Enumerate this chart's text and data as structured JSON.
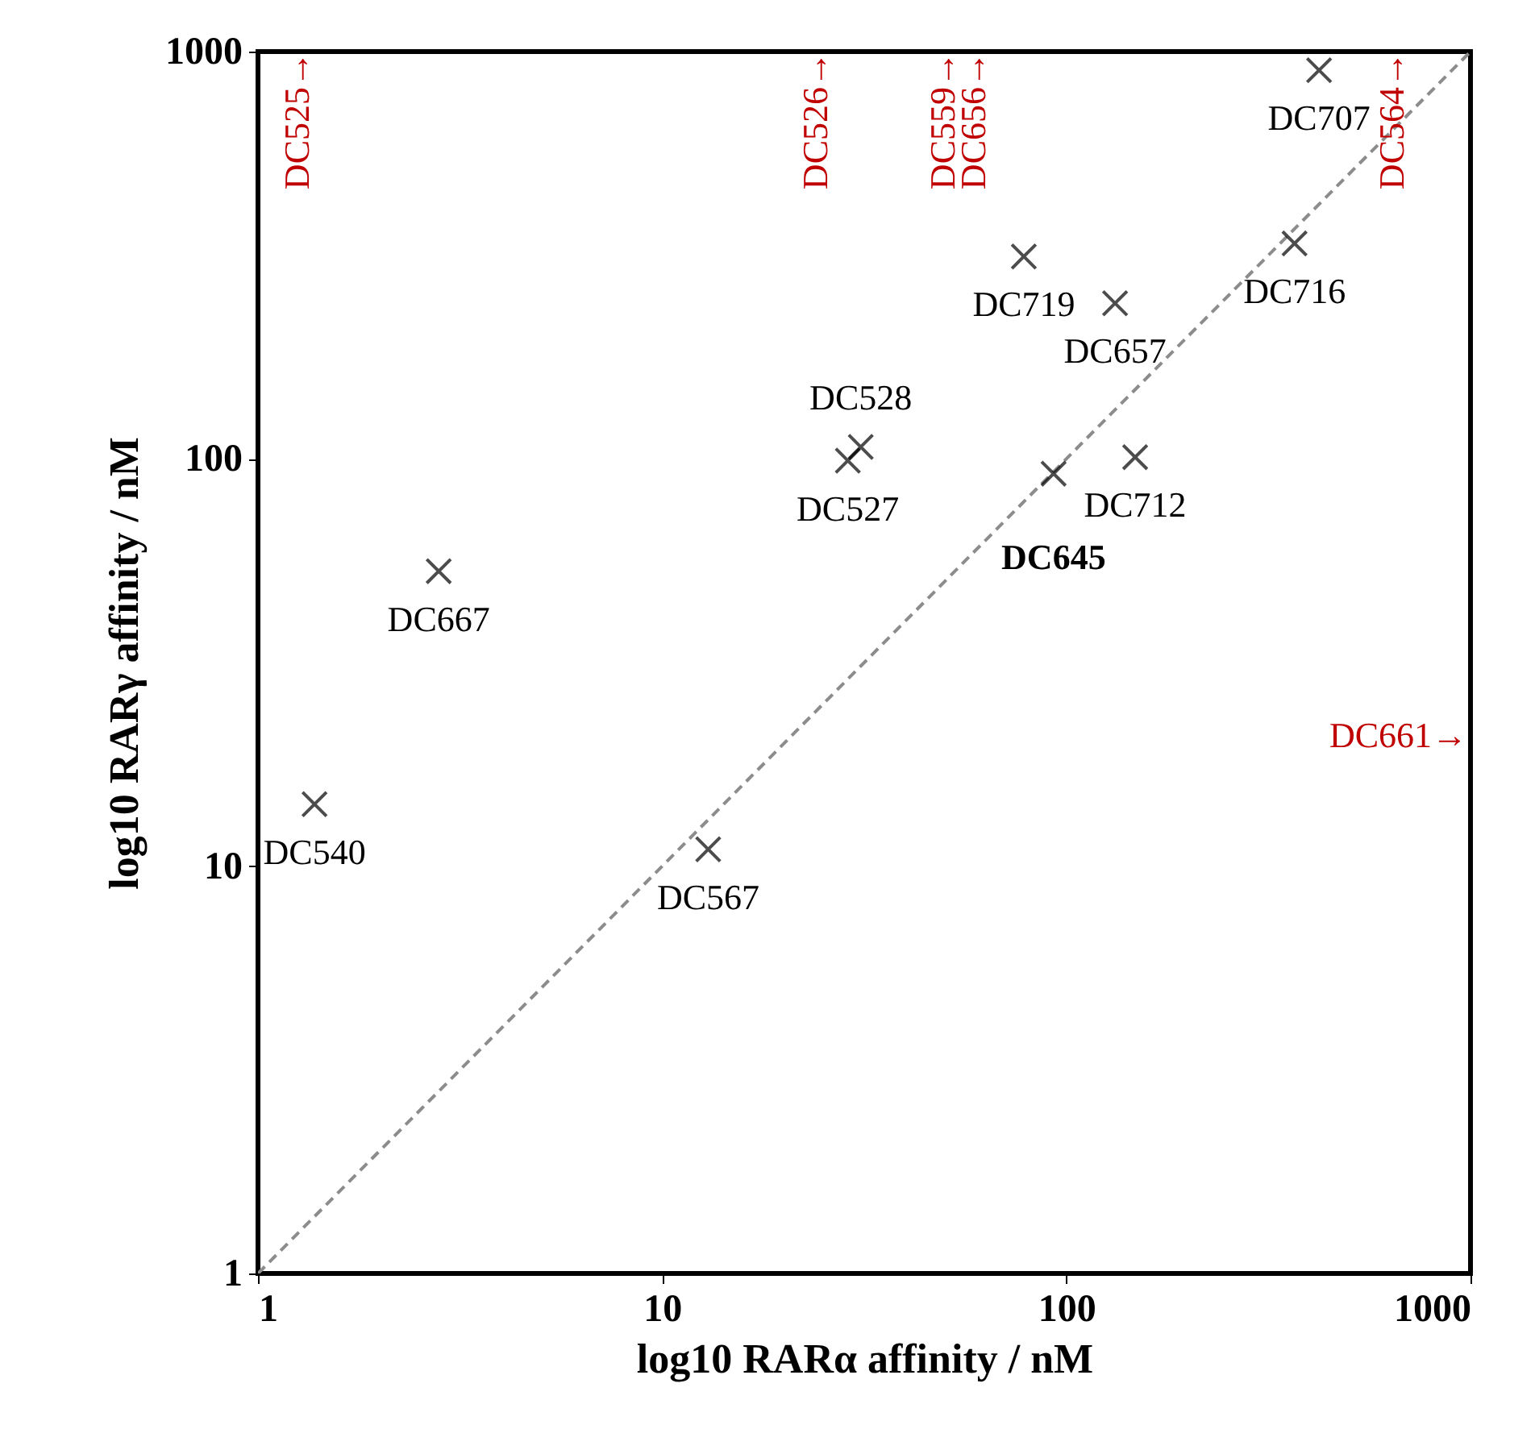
{
  "chart_data": {
    "type": "scatter",
    "xlabel": "log10 RARα affinity / nM",
    "ylabel": "log10 RARγ affinity / nM",
    "log": "xy",
    "xlim": [
      1,
      1000
    ],
    "ylim": [
      1,
      1000
    ],
    "xticks": [
      1,
      10,
      100,
      1000
    ],
    "yticks": [
      1,
      10,
      100,
      1000
    ],
    "grid": false,
    "marker": "cross",
    "series": [
      {
        "color": "#000000",
        "x": [
          422,
          367,
          78.5,
          132,
          31,
          28.8,
          148,
          93,
          2.8,
          1.38,
          13
        ],
        "values": [
          900,
          338,
          314,
          241,
          107,
          99,
          101,
          92,
          53,
          14.2,
          11
        ]
      },
      {
        "type": "line",
        "color": "#8c8c8c",
        "line_style": "dashed",
        "marker": "none",
        "x": [
          1,
          1000
        ],
        "values": [
          1,
          1000
        ]
      }
    ],
    "annotations": [
      {
        "text": "DC707",
        "x": 422,
        "y": 900
      },
      {
        "text": "DC716",
        "x": 367,
        "y": 338
      },
      {
        "text": "DC719",
        "x": 78.5,
        "y": 314
      },
      {
        "text": "DC657",
        "x": 132,
        "y": 241
      },
      {
        "text": "DC528",
        "x": 31,
        "y": 107
      },
      {
        "text": "DC527",
        "x": 28.8,
        "y": 99
      },
      {
        "text": "DC712",
        "x": 148,
        "y": 101
      },
      {
        "text": "DC645",
        "x": 93,
        "y": 92
      },
      {
        "text": "DC667",
        "x": 2.8,
        "y": 53
      },
      {
        "text": "DC540",
        "x": 1.38,
        "y": 14.2
      },
      {
        "text": "DC567",
        "x": 13,
        "y": 11
      },
      "DC525→",
      "DC526→",
      "DC559→",
      "DC656→",
      "DC564→",
      "DC661→"
    ]
  }
}
